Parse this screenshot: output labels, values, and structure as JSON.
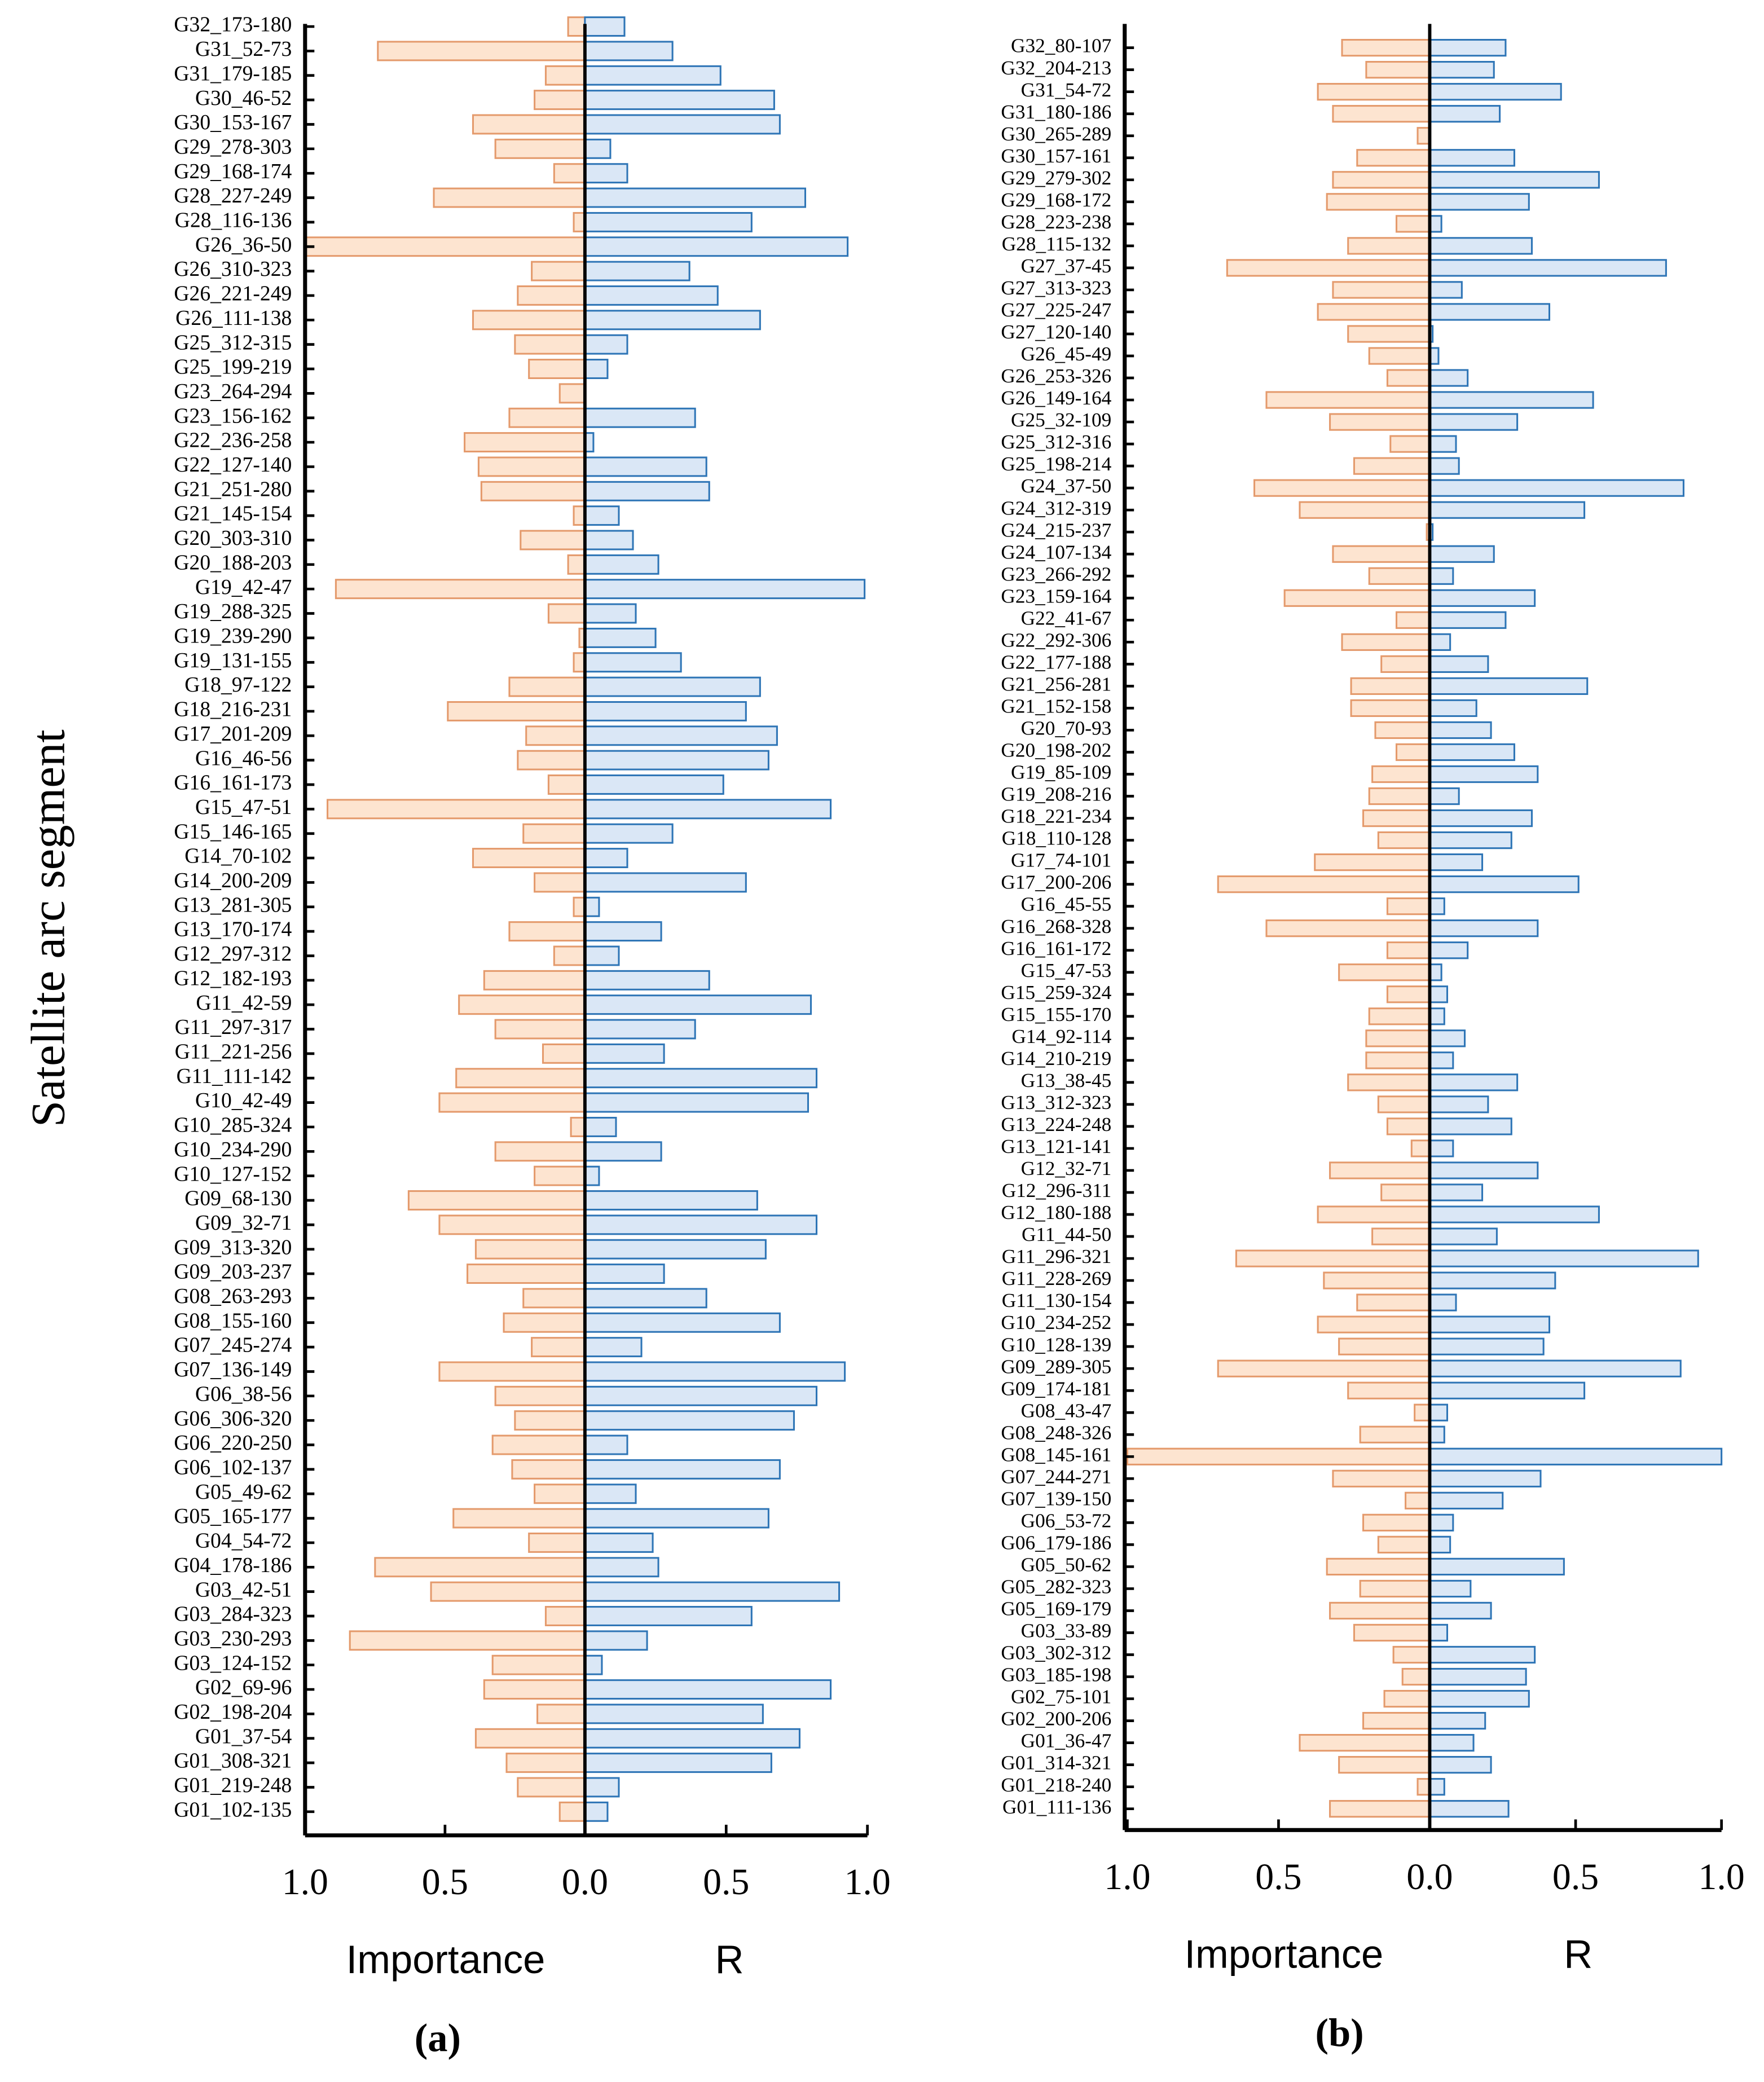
{
  "chart_data": [
    {
      "type": "butterfly",
      "panel_label": "(a)",
      "ylabel": "Satellite arc segment",
      "categories": [
        "G32_173-180",
        "G31_52-73",
        "G31_179-185",
        "G30_46-52",
        "G30_153-167",
        "G29_278-303",
        "G29_168-174",
        "G28_227-249",
        "G28_116-136",
        "G26_36-50",
        "G26_310-323",
        "G26_221-249",
        "G26_111-138",
        "G25_312-315",
        "G25_199-219",
        "G23_264-294",
        "G23_156-162",
        "G22_236-258",
        "G22_127-140",
        "G21_251-280",
        "G21_145-154",
        "G20_303-310",
        "G20_188-203",
        "G19_42-47",
        "G19_288-325",
        "G19_239-290",
        "G19_131-155",
        "G18_97-122",
        "G18_216-231",
        "G17_201-209",
        "G16_46-56",
        "G16_161-173",
        "G15_47-51",
        "G15_146-165",
        "G14_70-102",
        "G14_200-209",
        "G13_281-305",
        "G13_170-174",
        "G12_297-312",
        "G12_182-193",
        "G11_42-59",
        "G11_297-317",
        "G11_221-256",
        "G11_111-142",
        "G10_42-49",
        "G10_285-324",
        "G10_234-290",
        "G10_127-152",
        "G09_68-130",
        "G09_32-71",
        "G09_313-320",
        "G09_203-237",
        "G08_263-293",
        "G08_155-160",
        "G07_245-274",
        "G07_136-149",
        "G06_38-56",
        "G06_306-320",
        "G06_220-250",
        "G06_102-137",
        "G05_49-62",
        "G05_165-177",
        "G04_54-72",
        "G04_178-186",
        "G03_42-51",
        "G03_284-323",
        "G03_230-293",
        "G03_124-152",
        "G02_69-96",
        "G02_198-204",
        "G01_37-54",
        "G01_308-321",
        "G01_219-248",
        "G01_102-135"
      ],
      "series": [
        {
          "name": "Importance",
          "color": "#fde4d0",
          "stroke": "#e49a6c",
          "values": [
            0.06,
            0.74,
            0.14,
            0.18,
            0.4,
            0.32,
            0.11,
            0.54,
            0.04,
            1.0,
            0.19,
            0.24,
            0.4,
            0.25,
            0.2,
            0.09,
            0.27,
            0.43,
            0.38,
            0.37,
            0.04,
            0.23,
            0.06,
            0.89,
            0.13,
            0.02,
            0.04,
            0.27,
            0.49,
            0.21,
            0.24,
            0.13,
            0.92,
            0.22,
            0.4,
            0.18,
            0.04,
            0.27,
            0.11,
            0.36,
            0.45,
            0.32,
            0.15,
            0.46,
            0.52,
            0.05,
            0.32,
            0.18,
            0.63,
            0.52,
            0.39,
            0.42,
            0.22,
            0.29,
            0.19,
            0.52,
            0.32,
            0.25,
            0.33,
            0.26,
            0.18,
            0.47,
            0.2,
            0.75,
            0.55,
            0.14,
            0.84,
            0.33,
            0.36,
            0.17,
            0.39,
            0.28,
            0.24,
            0.09
          ]
        },
        {
          "name": "R",
          "color": "#dae7f6",
          "stroke": "#2e75b6",
          "values": [
            0.14,
            0.31,
            0.48,
            0.67,
            0.69,
            0.09,
            0.15,
            0.78,
            0.59,
            0.93,
            0.37,
            0.47,
            0.62,
            0.15,
            0.08,
            0,
            0.39,
            0.03,
            0.43,
            0.44,
            0.12,
            0.17,
            0.26,
            0.99,
            0.18,
            0.25,
            0.34,
            0.62,
            0.57,
            0.68,
            0.65,
            0.49,
            0.87,
            0.31,
            0.15,
            0.57,
            0.05,
            0.27,
            0.12,
            0.44,
            0.8,
            0.39,
            0.28,
            0.82,
            0.79,
            0.11,
            0.27,
            0.05,
            0.61,
            0.82,
            0.64,
            0.28,
            0.43,
            0.69,
            0.2,
            0.92,
            0.82,
            0.74,
            0.15,
            0.69,
            0.18,
            0.65,
            0.24,
            0.26,
            0.9,
            0.59,
            0.22,
            0.06,
            0.87,
            0.63,
            0.76,
            0.66,
            0.12,
            0.08
          ]
        }
      ],
      "xlim": [
        0,
        1
      ],
      "xticks_importance": [
        {
          "value": 1,
          "label": "1.0"
        },
        {
          "value": 0.5,
          "label": "0.5"
        },
        {
          "value": 0,
          "label": "0.0"
        }
      ],
      "xticks_r": [
        {
          "value": 0.5,
          "label": "0.5"
        },
        {
          "value": 1,
          "label": "1.0"
        }
      ]
    },
    {
      "type": "butterfly",
      "panel_label": "(b)",
      "categories": [
        "G32_80-107",
        "G32_204-213",
        "G31_54-72",
        "G31_180-186",
        "G30_265-289",
        "G30_157-161",
        "G29_279-302",
        "G29_168-172",
        "G28_223-238",
        "G28_115-132",
        "G27_37-45",
        "G27_313-323",
        "G27_225-247",
        "G27_120-140",
        "G26_45-49",
        "G26_253-326",
        "G26_149-164",
        "G25_32-109",
        "G25_312-316",
        "G25_198-214",
        "G24_37-50",
        "G24_312-319",
        "G24_215-237",
        "G24_107-134",
        "G23_266-292",
        "G23_159-164",
        "G22_41-67",
        "G22_292-306",
        "G22_177-188",
        "G21_256-281",
        "G21_152-158",
        "G20_70-93",
        "G20_198-202",
        "G19_85-109",
        "G19_208-216",
        "G18_221-234",
        "G18_110-128",
        "G17_74-101",
        "G17_200-206",
        "G16_45-55",
        "G16_268-328",
        "G16_161-172",
        "G15_47-53",
        "G15_259-324",
        "G15_155-170",
        "G14_92-114",
        "G14_210-219",
        "G13_38-45",
        "G13_312-323",
        "G13_224-248",
        "G13_121-141",
        "G12_32-71",
        "G12_296-311",
        "G12_180-188",
        "G11_44-50",
        "G11_296-321",
        "G11_228-269",
        "G11_130-154",
        "G10_234-252",
        "G10_128-139",
        "G09_289-305",
        "G09_174-181",
        "G08_43-47",
        "G08_248-326",
        "G08_145-161",
        "G07_244-271",
        "G07_139-150",
        "G06_53-72",
        "G06_179-186",
        "G05_50-62",
        "G05_282-323",
        "G05_169-179",
        "G03_33-89",
        "G03_302-312",
        "G03_185-198",
        "G02_75-101",
        "G02_200-206",
        "G01_36-47",
        "G01_314-321",
        "G01_218-240",
        "G01_111-136"
      ],
      "series": [
        {
          "name": "Importance",
          "color": "#fde4d0",
          "stroke": "#e49a6c",
          "values": [
            0.29,
            0.21,
            0.37,
            0.32,
            0.04,
            0.24,
            0.32,
            0.34,
            0.11,
            0.27,
            0.67,
            0.32,
            0.37,
            0.27,
            0.2,
            0.14,
            0.54,
            0.33,
            0.13,
            0.25,
            0.58,
            0.43,
            0.01,
            0.32,
            0.2,
            0.48,
            0.11,
            0.29,
            0.16,
            0.26,
            0.26,
            0.18,
            0.11,
            0.19,
            0.2,
            0.22,
            0.17,
            0.38,
            0.7,
            0.14,
            0.54,
            0.14,
            0.3,
            0.14,
            0.2,
            0.21,
            0.21,
            0.27,
            0.17,
            0.14,
            0.06,
            0.33,
            0.16,
            0.37,
            0.19,
            0.64,
            0.35,
            0.24,
            0.37,
            0.3,
            0.7,
            0.27,
            0.05,
            0.23,
            1.0,
            0.32,
            0.08,
            0.22,
            0.17,
            0.34,
            0.23,
            0.33,
            0.25,
            0.12,
            0.09,
            0.15,
            0.22,
            0.43,
            0.3,
            0.04,
            0.33
          ]
        },
        {
          "name": "R",
          "color": "#dae7f6",
          "stroke": "#2e75b6",
          "values": [
            0.26,
            0.22,
            0.45,
            0.24,
            0,
            0.29,
            0.58,
            0.34,
            0.04,
            0.35,
            0.81,
            0.11,
            0.41,
            0.01,
            0.03,
            0.13,
            0.56,
            0.3,
            0.09,
            0.1,
            0.87,
            0.53,
            0.01,
            0.22,
            0.08,
            0.36,
            0.26,
            0.07,
            0.2,
            0.54,
            0.16,
            0.21,
            0.29,
            0.37,
            0.1,
            0.35,
            0.28,
            0.18,
            0.51,
            0.05,
            0.37,
            0.13,
            0.04,
            0.06,
            0.05,
            0.12,
            0.08,
            0.3,
            0.2,
            0.28,
            0.08,
            0.37,
            0.18,
            0.58,
            0.23,
            0.92,
            0.43,
            0.09,
            0.41,
            0.39,
            0.86,
            0.53,
            0.06,
            0.05,
            1.0,
            0.38,
            0.25,
            0.08,
            0.07,
            0.46,
            0.14,
            0.21,
            0.06,
            0.36,
            0.33,
            0.34,
            0.19,
            0.15,
            0.21,
            0.05,
            0.27
          ]
        }
      ],
      "xlim": [
        0,
        1
      ],
      "xticks_importance": [
        {
          "value": 1,
          "label": "1.0"
        },
        {
          "value": 0.5,
          "label": "0.5"
        },
        {
          "value": 0,
          "label": "0.0"
        }
      ],
      "xticks_r": [
        {
          "value": 0.5,
          "label": "0.5"
        },
        {
          "value": 1,
          "label": "1.0"
        }
      ]
    }
  ]
}
